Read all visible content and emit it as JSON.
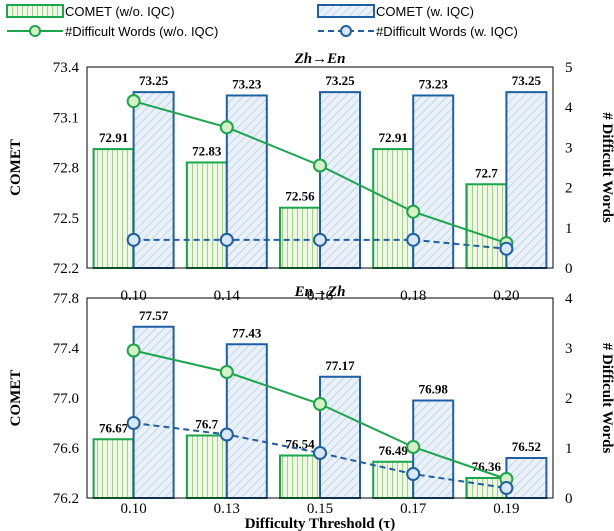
{
  "legend": {
    "comet_wo": "COMET (w/o. IQC)",
    "comet_w": "COMET (w. IQC)",
    "words_wo": "#Difficult Words (w/o. IQC)",
    "words_w": "#Difficult Words (w. IQC)"
  },
  "colors": {
    "green": "#1aa64a",
    "blue": "#1f5fa4",
    "green_fill": "#eef8e4",
    "blue_fill": "#e6eef8"
  },
  "chart_data": [
    {
      "type": "bar+line",
      "title": "Zh→En",
      "categories": [
        "0.10",
        "0.14",
        "0.16",
        "0.18",
        "0.20"
      ],
      "ylabel": "COMET",
      "ylim": [
        72.2,
        73.4
      ],
      "yticks": [
        "72.2",
        "72.5",
        "72.8",
        "73.1",
        "73.4"
      ],
      "y2label": "# Difficult Words",
      "y2lim": [
        0,
        5
      ],
      "y2ticks": [
        "0",
        "1",
        "2",
        "3",
        "4",
        "5"
      ],
      "bars": [
        {
          "name": "COMET (w/o. IQC)",
          "values": [
            72.91,
            72.83,
            72.56,
            72.91,
            72.7
          ],
          "labels": [
            "72.91",
            "72.83",
            "72.56",
            "72.91",
            "72.7"
          ]
        },
        {
          "name": "COMET (w. IQC)",
          "values": [
            73.25,
            73.23,
            73.25,
            73.23,
            73.25
          ],
          "labels": [
            "73.25",
            "73.23",
            "73.25",
            "73.23",
            "73.25"
          ]
        }
      ],
      "lines": [
        {
          "name": "#Difficult Words (w/o. IQC)",
          "values": [
            4.15,
            3.5,
            2.55,
            1.4,
            0.62
          ]
        },
        {
          "name": "#Difficult Words (w. IQC)",
          "values": [
            0.7,
            0.7,
            0.7,
            0.7,
            0.48
          ]
        }
      ]
    },
    {
      "type": "bar+line",
      "title": "En→Zh",
      "categories": [
        "0.10",
        "0.13",
        "0.15",
        "0.17",
        "0.19"
      ],
      "xlabel": "Difficulty Threshold (τ)",
      "ylabel": "COMET",
      "ylim": [
        76.2,
        77.8
      ],
      "yticks": [
        "76.2",
        "76.6",
        "77.0",
        "77.4",
        "77.8"
      ],
      "y2label": "# Difficult Words",
      "y2lim": [
        0,
        4
      ],
      "y2ticks": [
        "0",
        "1",
        "2",
        "3",
        "4"
      ],
      "bars": [
        {
          "name": "COMET (w/o. IQC)",
          "values": [
            76.67,
            76.7,
            76.54,
            76.49,
            76.36
          ],
          "labels": [
            "76.67",
            "76.7",
            "76.54",
            "76.49",
            "76.36"
          ]
        },
        {
          "name": "COMET (w. IQC)",
          "values": [
            77.57,
            77.43,
            77.17,
            76.98,
            76.52
          ],
          "labels": [
            "77.57",
            "77.43",
            "77.17",
            "76.98",
            "76.52"
          ]
        }
      ],
      "lines": [
        {
          "name": "#Difficult Words (w/o. IQC)",
          "values": [
            2.95,
            2.52,
            1.88,
            1.02,
            0.38
          ]
        },
        {
          "name": "#Difficult Words (w. IQC)",
          "values": [
            1.5,
            1.27,
            0.9,
            0.48,
            0.2
          ]
        }
      ]
    }
  ]
}
